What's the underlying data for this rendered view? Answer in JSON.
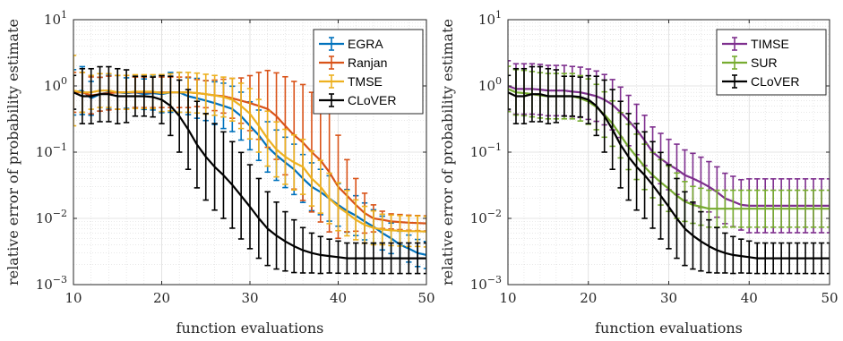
{
  "chart_data": [
    {
      "type": "line",
      "panel": "left",
      "xlabel": "function evaluations",
      "ylabel": "relative error of probability estimate",
      "xlim": [
        10,
        50
      ],
      "ylim": [
        0.001,
        10
      ],
      "yscale": "log",
      "grid": true,
      "minor_grid": true,
      "xticks": [
        10,
        20,
        30,
        40,
        50
      ],
      "ytick_labels": [
        {
          "value": 0.001,
          "base": "10",
          "exp": "−3"
        },
        {
          "value": 0.01,
          "base": "10",
          "exp": "−2"
        },
        {
          "value": 0.1,
          "base": "10",
          "exp": "−1"
        },
        {
          "value": 1,
          "base": "10",
          "exp": "0"
        },
        {
          "value": 10,
          "base": "10",
          "exp": "1"
        }
      ],
      "legend_position": "top-right",
      "series": [
        {
          "name": "EGRA",
          "color": "#0072BD",
          "style": "errorbar",
          "x_start": 10,
          "values": [
            0.8,
            0.85,
            0.65,
            0.75,
            0.8,
            0.8,
            0.78,
            0.8,
            0.75,
            0.78,
            0.75,
            0.8,
            0.8,
            0.7,
            0.65,
            0.6,
            0.55,
            0.5,
            0.45,
            0.35,
            0.25,
            0.18,
            0.12,
            0.09,
            0.07,
            0.055,
            0.04,
            0.03,
            0.025,
            0.02,
            0.016,
            0.013,
            0.011,
            0.009,
            0.0075,
            0.006,
            0.005,
            0.004,
            0.0035,
            0.003,
            0.0028
          ],
          "err_factor": [
            2.2,
            2.3,
            1.8,
            1.8,
            1.8,
            1.8,
            1.7,
            1.7,
            1.7,
            1.8,
            1.9,
            2.0,
            2.0,
            1.9,
            2.0,
            2.0,
            2.1,
            2.2,
            2.2,
            2.3,
            2.3,
            2.4,
            2.4,
            2.4,
            2.4,
            2.4,
            2.3,
            2.3,
            2.2,
            2.2,
            2.1,
            2.1,
            2.0,
            1.9,
            1.8,
            1.8,
            1.7,
            1.6,
            1.6,
            1.6,
            1.6
          ]
        },
        {
          "name": "Ranjan",
          "color": "#D95319",
          "style": "errorbar",
          "x_start": 10,
          "values": [
            0.8,
            0.8,
            0.72,
            0.75,
            0.78,
            0.8,
            0.8,
            0.8,
            0.8,
            0.8,
            0.8,
            0.8,
            0.8,
            0.8,
            0.78,
            0.75,
            0.72,
            0.7,
            0.65,
            0.6,
            0.55,
            0.5,
            0.45,
            0.35,
            0.25,
            0.18,
            0.14,
            0.1,
            0.075,
            0.05,
            0.03,
            0.022,
            0.016,
            0.012,
            0.01,
            0.0095,
            0.009,
            0.0088,
            0.0086,
            0.0085,
            0.0084
          ],
          "err_factor": [
            2.0,
            2.0,
            1.9,
            1.8,
            1.8,
            1.8,
            1.8,
            1.7,
            1.7,
            1.7,
            1.7,
            1.7,
            1.7,
            1.7,
            1.6,
            1.6,
            1.7,
            1.8,
            2.0,
            2.2,
            2.6,
            3.2,
            3.8,
            4.5,
            5.5,
            6.5,
            7.5,
            8.0,
            8.5,
            8.0,
            6.0,
            3.5,
            2.5,
            2.0,
            1.6,
            1.35,
            1.3,
            1.3,
            1.3,
            1.3,
            1.3
          ]
        },
        {
          "name": "TMSE",
          "color": "#EDB120",
          "style": "errorbar",
          "x_start": 10,
          "values": [
            0.85,
            0.8,
            0.8,
            0.85,
            0.85,
            0.8,
            0.8,
            0.82,
            0.82,
            0.82,
            0.78,
            0.8,
            0.8,
            0.8,
            0.78,
            0.75,
            0.72,
            0.68,
            0.62,
            0.5,
            0.38,
            0.25,
            0.16,
            0.11,
            0.085,
            0.07,
            0.06,
            0.04,
            0.03,
            0.02,
            0.015,
            0.012,
            0.0095,
            0.008,
            0.0072,
            0.0068,
            0.0066,
            0.0065,
            0.0064,
            0.0064,
            0.0063
          ],
          "err_factor": [
            3.4,
            2.0,
            1.8,
            1.8,
            1.8,
            1.8,
            1.8,
            1.8,
            1.8,
            1.8,
            1.9,
            1.9,
            2.0,
            2.0,
            2.0,
            2.0,
            2.0,
            2.0,
            2.1,
            2.2,
            2.4,
            2.5,
            2.6,
            2.6,
            2.6,
            2.6,
            2.6,
            2.6,
            2.5,
            2.4,
            2.3,
            2.2,
            2.0,
            1.9,
            1.8,
            1.7,
            1.7,
            1.7,
            1.7,
            1.7,
            1.7
          ]
        },
        {
          "name": "CLoVER",
          "color": "#000000",
          "style": "errorbar",
          "x_start": 10,
          "values": [
            0.8,
            0.7,
            0.7,
            0.75,
            0.75,
            0.7,
            0.7,
            0.7,
            0.7,
            0.68,
            0.62,
            0.5,
            0.35,
            0.22,
            0.13,
            0.085,
            0.06,
            0.045,
            0.032,
            0.022,
            0.015,
            0.01,
            0.007,
            0.0055,
            0.0045,
            0.0038,
            0.0033,
            0.003,
            0.0028,
            0.0027,
            0.0026,
            0.0025,
            0.0025,
            0.0025,
            0.0025,
            0.0025,
            0.0025,
            0.0025,
            0.0025,
            0.0025,
            0.0025
          ],
          "err_factor": [
            1.8,
            2.6,
            2.6,
            2.6,
            2.6,
            2.6,
            2.5,
            2.0,
            2.0,
            2.0,
            2.3,
            2.8,
            3.5,
            4.0,
            4.5,
            4.5,
            4.5,
            4.5,
            4.5,
            4.5,
            4.3,
            4.0,
            3.6,
            3.2,
            2.8,
            2.5,
            2.2,
            2.0,
            1.9,
            1.8,
            1.75,
            1.7,
            1.7,
            1.7,
            1.7,
            1.7,
            1.7,
            1.7,
            1.7,
            1.7,
            1.7
          ]
        }
      ]
    },
    {
      "type": "line",
      "panel": "right",
      "xlabel": "function evaluations",
      "ylabel": "relative error of probability estimate",
      "xlim": [
        10,
        50
      ],
      "ylim": [
        0.001,
        10
      ],
      "yscale": "log",
      "grid": true,
      "minor_grid": true,
      "xticks": [
        10,
        20,
        30,
        40,
        50
      ],
      "ytick_labels": [
        {
          "value": 0.001,
          "base": "10",
          "exp": "−3"
        },
        {
          "value": 0.01,
          "base": "10",
          "exp": "−2"
        },
        {
          "value": 0.1,
          "base": "10",
          "exp": "−1"
        },
        {
          "value": 1,
          "base": "10",
          "exp": "0"
        },
        {
          "value": 10,
          "base": "10",
          "exp": "1"
        }
      ],
      "legend_position": "top-right",
      "series": [
        {
          "name": "TIMSE",
          "color": "#7E2F8E",
          "style": "errorbar",
          "x_start": 10,
          "values": [
            1.0,
            0.9,
            0.9,
            0.9,
            0.88,
            0.85,
            0.85,
            0.85,
            0.82,
            0.8,
            0.75,
            0.7,
            0.62,
            0.52,
            0.4,
            0.3,
            0.22,
            0.15,
            0.1,
            0.08,
            0.065,
            0.055,
            0.045,
            0.04,
            0.035,
            0.03,
            0.025,
            0.02,
            0.018,
            0.016,
            0.0155,
            0.0155,
            0.0155,
            0.0155,
            0.0155,
            0.0155,
            0.0155,
            0.0155,
            0.0155,
            0.0155,
            0.0155
          ],
          "err_factor": [
            2.4,
            2.4,
            2.4,
            2.4,
            2.4,
            2.4,
            2.4,
            2.4,
            2.4,
            2.4,
            2.4,
            2.4,
            2.4,
            2.4,
            2.4,
            2.4,
            2.4,
            2.4,
            2.4,
            2.4,
            2.4,
            2.4,
            2.4,
            2.4,
            2.4,
            2.4,
            2.4,
            2.4,
            2.4,
            2.4,
            2.55,
            2.55,
            2.55,
            2.55,
            2.55,
            2.55,
            2.55,
            2.55,
            2.55,
            2.55,
            2.55
          ]
        },
        {
          "name": "SUR",
          "color": "#77AC30",
          "style": "errorbar",
          "x_start": 10,
          "values": [
            0.9,
            0.8,
            0.78,
            0.75,
            0.72,
            0.7,
            0.7,
            0.7,
            0.7,
            0.65,
            0.58,
            0.48,
            0.37,
            0.27,
            0.18,
            0.12,
            0.085,
            0.06,
            0.045,
            0.035,
            0.028,
            0.022,
            0.018,
            0.016,
            0.015,
            0.014,
            0.014,
            0.014,
            0.014,
            0.014,
            0.014,
            0.014,
            0.014,
            0.014,
            0.014,
            0.014,
            0.014,
            0.014,
            0.014,
            0.014,
            0.014
          ],
          "err_factor": [
            2.2,
            2.2,
            2.2,
            2.2,
            2.2,
            2.2,
            2.2,
            2.2,
            2.2,
            2.2,
            2.2,
            2.2,
            2.2,
            2.2,
            2.2,
            2.2,
            2.2,
            2.2,
            2.2,
            2.2,
            2.2,
            2.2,
            2.0,
            1.9,
            1.9,
            1.9,
            1.9,
            1.9,
            1.9,
            1.9,
            1.9,
            1.9,
            1.9,
            1.9,
            1.9,
            1.9,
            1.9,
            1.9,
            1.9,
            1.9,
            1.9
          ]
        },
        {
          "name": "CLoVER",
          "color": "#000000",
          "style": "errorbar",
          "x_start": 10,
          "values": [
            0.8,
            0.7,
            0.7,
            0.75,
            0.75,
            0.7,
            0.7,
            0.7,
            0.7,
            0.68,
            0.62,
            0.5,
            0.35,
            0.22,
            0.13,
            0.085,
            0.06,
            0.045,
            0.032,
            0.022,
            0.015,
            0.01,
            0.007,
            0.0055,
            0.0045,
            0.0038,
            0.0033,
            0.003,
            0.0028,
            0.0027,
            0.0026,
            0.0025,
            0.0025,
            0.0025,
            0.0025,
            0.0025,
            0.0025,
            0.0025,
            0.0025,
            0.0025,
            0.0025
          ],
          "err_factor": [
            1.8,
            2.6,
            2.6,
            2.6,
            2.6,
            2.6,
            2.5,
            2.0,
            2.0,
            2.0,
            2.3,
            2.8,
            3.5,
            4.0,
            4.5,
            4.5,
            4.5,
            4.5,
            4.5,
            4.5,
            4.3,
            4.0,
            3.6,
            3.2,
            2.8,
            2.5,
            2.2,
            2.0,
            1.9,
            1.8,
            1.75,
            1.7,
            1.7,
            1.7,
            1.7,
            1.7,
            1.7,
            1.7,
            1.7,
            1.7,
            1.7
          ]
        }
      ]
    }
  ]
}
